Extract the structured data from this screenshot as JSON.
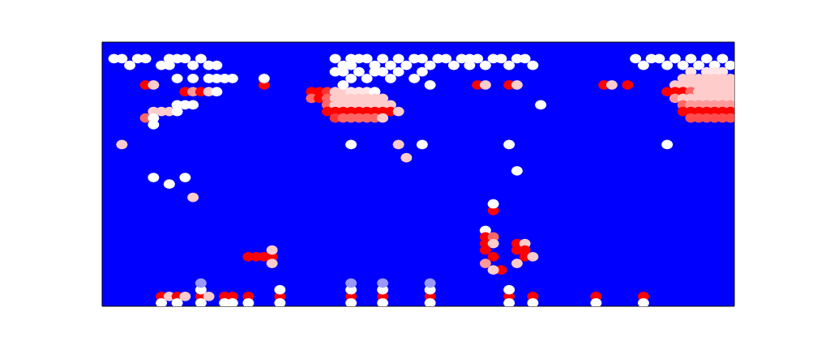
{
  "chart_data": {
    "type": "heatmap",
    "tick_labels": false,
    "grid": false,
    "xlim": [
      0,
      80
    ],
    "ylim": [
      0,
      40
    ],
    "xticks": [],
    "yticks": [],
    "zlim": [
      0,
      1
    ],
    "colors": [
      "#0000ff",
      "#ffffff",
      "#ff0000"
    ],
    "cells": [
      [
        1,
        37,
        0.5
      ],
      [
        2,
        37,
        0.5
      ],
      [
        4,
        37,
        0.5
      ],
      [
        5,
        37,
        0.5
      ],
      [
        8,
        37,
        0.5
      ],
      [
        9,
        37,
        0.5
      ],
      [
        10,
        37,
        0.5
      ],
      [
        12,
        37,
        0.5
      ],
      [
        3,
        36,
        0.5
      ],
      [
        7,
        36,
        0.5
      ],
      [
        8,
        36,
        0.5
      ],
      [
        11,
        36,
        0.5
      ],
      [
        13,
        36,
        0.5
      ],
      [
        14,
        36,
        0.5
      ],
      [
        9,
        34,
        0.5
      ],
      [
        11,
        34,
        0.5
      ],
      [
        13,
        34,
        0.5
      ],
      [
        14,
        34,
        0.5
      ],
      [
        15,
        34,
        0.5
      ],
      [
        16,
        34,
        0.5
      ],
      [
        5,
        33,
        1
      ],
      [
        6,
        33,
        0.6
      ],
      [
        10,
        32,
        1
      ],
      [
        11,
        32,
        0.7
      ],
      [
        12,
        32,
        1
      ],
      [
        13,
        32,
        0.6
      ],
      [
        14,
        32,
        0.5
      ],
      [
        9,
        30,
        0.5
      ],
      [
        10,
        30,
        0.5
      ],
      [
        11,
        30,
        0.5
      ],
      [
        6,
        29,
        0.6
      ],
      [
        7,
        29,
        0.6
      ],
      [
        8,
        29,
        0.6
      ],
      [
        9,
        29,
        0.5
      ],
      [
        5,
        28,
        0.8
      ],
      [
        6,
        28,
        0.5
      ],
      [
        6,
        27,
        0.5
      ],
      [
        20,
        33,
        1
      ],
      [
        20,
        34,
        0.5
      ],
      [
        26,
        32,
        1
      ],
      [
        27,
        32,
        1
      ],
      [
        28,
        32,
        0.9
      ],
      [
        29,
        32,
        0.6
      ],
      [
        30,
        32,
        0.6
      ],
      [
        31,
        32,
        0.55
      ],
      [
        32,
        32,
        0.55
      ],
      [
        33,
        32,
        0.55
      ],
      [
        34,
        32,
        0.5
      ],
      [
        26,
        31,
        0.8
      ],
      [
        27,
        31,
        1
      ],
      [
        28,
        31,
        0.8
      ],
      [
        29,
        31,
        0.6
      ],
      [
        30,
        31,
        0.6
      ],
      [
        31,
        31,
        0.6
      ],
      [
        32,
        31,
        0.6
      ],
      [
        33,
        31,
        0.6
      ],
      [
        34,
        31,
        0.6
      ],
      [
        35,
        31,
        0.6
      ],
      [
        28,
        30,
        0.8
      ],
      [
        29,
        30,
        0.6
      ],
      [
        30,
        30,
        0.6
      ],
      [
        31,
        30,
        0.6
      ],
      [
        32,
        30,
        0.6
      ],
      [
        33,
        30,
        0.6
      ],
      [
        34,
        30,
        0.6
      ],
      [
        35,
        30,
        0.6
      ],
      [
        36,
        30,
        0.6
      ],
      [
        28,
        29,
        1
      ],
      [
        29,
        29,
        1
      ],
      [
        30,
        29,
        1
      ],
      [
        31,
        29,
        1
      ],
      [
        32,
        29,
        1
      ],
      [
        33,
        29,
        1
      ],
      [
        34,
        29,
        1
      ],
      [
        35,
        29,
        1
      ],
      [
        36,
        29,
        1
      ],
      [
        37,
        29,
        0.6
      ],
      [
        29,
        28,
        0.9
      ],
      [
        30,
        28,
        0.8
      ],
      [
        31,
        28,
        0.8
      ],
      [
        32,
        28,
        0.8
      ],
      [
        33,
        28,
        0.8
      ],
      [
        34,
        28,
        0.8
      ],
      [
        35,
        28,
        0.6
      ],
      [
        29,
        37,
        0.5
      ],
      [
        31,
        37,
        0.5
      ],
      [
        32,
        37,
        0.5
      ],
      [
        33,
        37,
        0.5
      ],
      [
        35,
        37,
        0.5
      ],
      [
        37,
        37,
        0.5
      ],
      [
        39,
        37,
        0.5
      ],
      [
        40,
        37,
        0.5
      ],
      [
        42,
        37,
        0.5
      ],
      [
        43,
        37,
        0.5
      ],
      [
        30,
        36,
        0.5
      ],
      [
        31,
        36,
        0.5
      ],
      [
        34,
        36,
        0.5
      ],
      [
        36,
        36,
        0.5
      ],
      [
        38,
        36,
        0.5
      ],
      [
        41,
        36,
        0.5
      ],
      [
        44,
        36,
        0.5
      ],
      [
        29,
        35,
        0.5
      ],
      [
        30,
        35,
        0.5
      ],
      [
        32,
        35,
        0.5
      ],
      [
        34,
        35,
        0.5
      ],
      [
        35,
        35,
        0.5
      ],
      [
        37,
        35,
        0.5
      ],
      [
        40,
        35,
        0.5
      ],
      [
        31,
        34,
        0.5
      ],
      [
        33,
        34,
        0.5
      ],
      [
        36,
        34,
        0.5
      ],
      [
        39,
        34,
        0.5
      ],
      [
        30,
        33,
        0.5
      ],
      [
        41,
        33,
        0.5
      ],
      [
        45,
        37,
        0.5
      ],
      [
        46,
        37,
        0.5
      ],
      [
        47,
        37,
        0.5
      ],
      [
        49,
        37,
        0.5
      ],
      [
        50,
        37,
        0.5
      ],
      [
        52,
        37,
        0.5
      ],
      [
        53,
        37,
        0.5
      ],
      [
        46,
        36,
        0.5
      ],
      [
        48,
        36,
        0.5
      ],
      [
        51,
        36,
        0.5
      ],
      [
        54,
        36,
        0.5
      ],
      [
        47,
        33,
        1
      ],
      [
        48,
        33,
        0.6
      ],
      [
        51,
        33,
        1
      ],
      [
        52,
        33,
        0.6
      ],
      [
        55,
        30,
        0.5
      ],
      [
        63,
        33,
        1
      ],
      [
        64,
        33,
        0.6
      ],
      [
        66,
        33,
        1
      ],
      [
        67,
        37,
        0.5
      ],
      [
        69,
        37,
        0.5
      ],
      [
        70,
        37,
        0.5
      ],
      [
        72,
        37,
        0.5
      ],
      [
        74,
        37,
        0.5
      ],
      [
        76,
        37,
        0.5
      ],
      [
        78,
        37,
        0.5
      ],
      [
        68,
        36,
        0.5
      ],
      [
        71,
        36,
        0.5
      ],
      [
        73,
        36,
        0.5
      ],
      [
        75,
        36,
        0.5
      ],
      [
        77,
        36,
        0.5
      ],
      [
        79,
        36,
        0.5
      ],
      [
        74,
        35,
        0.55
      ],
      [
        76,
        35,
        0.55
      ],
      [
        77,
        35,
        0.55
      ],
      [
        78,
        35,
        0.55
      ],
      [
        73,
        34,
        0.6
      ],
      [
        74,
        34,
        0.6
      ],
      [
        75,
        34,
        0.6
      ],
      [
        76,
        34,
        0.6
      ],
      [
        77,
        34,
        0.6
      ],
      [
        78,
        34,
        0.6
      ],
      [
        79,
        34,
        0.6
      ],
      [
        72,
        33,
        0.6
      ],
      [
        73,
        33,
        0.6
      ],
      [
        74,
        33,
        0.6
      ],
      [
        75,
        33,
        0.6
      ],
      [
        76,
        33,
        0.6
      ],
      [
        77,
        33,
        0.6
      ],
      [
        78,
        33,
        0.6
      ],
      [
        79,
        33,
        0.6
      ],
      [
        71,
        32,
        1
      ],
      [
        72,
        32,
        1
      ],
      [
        73,
        32,
        1
      ],
      [
        74,
        32,
        0.8
      ],
      [
        75,
        32,
        0.6
      ],
      [
        76,
        32,
        0.6
      ],
      [
        77,
        32,
        0.6
      ],
      [
        78,
        32,
        0.6
      ],
      [
        79,
        32,
        0.6
      ],
      [
        72,
        31,
        0.7
      ],
      [
        73,
        31,
        0.6
      ],
      [
        74,
        31,
        0.6
      ],
      [
        75,
        31,
        0.6
      ],
      [
        76,
        31,
        0.6
      ],
      [
        77,
        31,
        0.6
      ],
      [
        78,
        31,
        0.6
      ],
      [
        79,
        31,
        0.6
      ],
      [
        73,
        30,
        0.8
      ],
      [
        74,
        30,
        0.7
      ],
      [
        75,
        30,
        0.7
      ],
      [
        76,
        30,
        0.7
      ],
      [
        77,
        30,
        0.7
      ],
      [
        78,
        30,
        0.7
      ],
      [
        79,
        30,
        0.7
      ],
      [
        73,
        29,
        1
      ],
      [
        74,
        29,
        1
      ],
      [
        75,
        29,
        1
      ],
      [
        76,
        29,
        1
      ],
      [
        77,
        29,
        1
      ],
      [
        78,
        29,
        1
      ],
      [
        79,
        29,
        1
      ],
      [
        74,
        28,
        0.85
      ],
      [
        75,
        28,
        0.85
      ],
      [
        76,
        28,
        0.85
      ],
      [
        77,
        28,
        0.85
      ],
      [
        78,
        28,
        0.85
      ],
      [
        79,
        28,
        0.85
      ],
      [
        2,
        24,
        0.6
      ],
      [
        6,
        19,
        0.5
      ],
      [
        10,
        19,
        0.5
      ],
      [
        8,
        18,
        0.5
      ],
      [
        11,
        16,
        0.6
      ],
      [
        31,
        24,
        0.5
      ],
      [
        37,
        24,
        0.6
      ],
      [
        38,
        22,
        0.6
      ],
      [
        40,
        24,
        0.5
      ],
      [
        51,
        24,
        0.5
      ],
      [
        52,
        20,
        0.5
      ],
      [
        71,
        24,
        0.5
      ],
      [
        18,
        7,
        1
      ],
      [
        19,
        7,
        1
      ],
      [
        20,
        7,
        1
      ],
      [
        21,
        7,
        1
      ],
      [
        21,
        8,
        0.6
      ],
      [
        21,
        6,
        0.6
      ],
      [
        49,
        14,
        1
      ],
      [
        49,
        15,
        0.5
      ],
      [
        48,
        11,
        0.5
      ],
      [
        48,
        10,
        1
      ],
      [
        49,
        10,
        0.8
      ],
      [
        48,
        9,
        1
      ],
      [
        49,
        9,
        0.6
      ],
      [
        48,
        8,
        1
      ],
      [
        49,
        7,
        1
      ],
      [
        48,
        6,
        0.7
      ],
      [
        50,
        5,
        1
      ],
      [
        49,
        5,
        0.6
      ],
      [
        52,
        9,
        1
      ],
      [
        53,
        9,
        0.6
      ],
      [
        52,
        8,
        1
      ],
      [
        53,
        8,
        1
      ],
      [
        53,
        7,
        1
      ],
      [
        54,
        7,
        0.6
      ],
      [
        52,
        6,
        0.6
      ],
      [
        7,
        1,
        1
      ],
      [
        8,
        1,
        0.6
      ],
      [
        9,
        1,
        1
      ],
      [
        10,
        1,
        0.6
      ],
      [
        12,
        1,
        1
      ],
      [
        13,
        1,
        0.6
      ],
      [
        15,
        1,
        1
      ],
      [
        16,
        1,
        1
      ],
      [
        18,
        1,
        1
      ],
      [
        22,
        1,
        1
      ],
      [
        31,
        1,
        1
      ],
      [
        35,
        1,
        1
      ],
      [
        41,
        1,
        1
      ],
      [
        51,
        1,
        1
      ],
      [
        54,
        1,
        1
      ],
      [
        62,
        1,
        1
      ],
      [
        68,
        1,
        1
      ],
      [
        7,
        0,
        0.5
      ],
      [
        9,
        0,
        0.5
      ],
      [
        12,
        0,
        0.5
      ],
      [
        15,
        0,
        0.5
      ],
      [
        16,
        0,
        0.5
      ],
      [
        18,
        0,
        0.5
      ],
      [
        22,
        0,
        0.5
      ],
      [
        31,
        0,
        0.5
      ],
      [
        35,
        0,
        0.5
      ],
      [
        41,
        0,
        0.5
      ],
      [
        51,
        0,
        0.5
      ],
      [
        54,
        0,
        0.5
      ],
      [
        62,
        0,
        0.5
      ],
      [
        68,
        0,
        0.5
      ],
      [
        12,
        2,
        0.5
      ],
      [
        22,
        2,
        0.5
      ],
      [
        31,
        2,
        0.5
      ],
      [
        35,
        2,
        0.5
      ],
      [
        41,
        2,
        0.5
      ],
      [
        51,
        2,
        0.5
      ],
      [
        12,
        3,
        0.3
      ],
      [
        31,
        3,
        0.3
      ],
      [
        35,
        3,
        0.3
      ],
      [
        41,
        3,
        0.3
      ]
    ]
  }
}
